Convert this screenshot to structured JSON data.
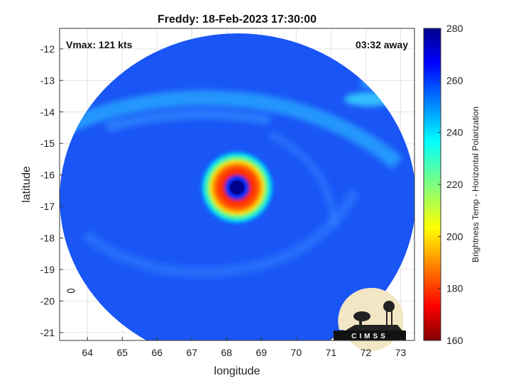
{
  "chart_data": {
    "type": "heatmap",
    "title": "Freddy: 18-Feb-2023 17:30:00",
    "xlabel": "longitude",
    "ylabel": "latitude",
    "xlim": [
      63.2,
      73.4
    ],
    "ylim": [
      -21.25,
      -11.35
    ],
    "xticks": [
      64,
      65,
      66,
      67,
      68,
      69,
      70,
      71,
      72,
      73
    ],
    "xtick_labels": [
      "64",
      "65",
      "66",
      "67",
      "68",
      "69",
      "70",
      "71",
      "72",
      "73"
    ],
    "yticks": [
      -12,
      -13,
      -14,
      -15,
      -16,
      -17,
      -18,
      -19,
      -20,
      -21
    ],
    "ytick_labels": [
      "-12",
      "-13",
      "-14",
      "-15",
      "-16",
      "-17",
      "-18",
      "-19",
      "-20",
      "-21"
    ],
    "grid": true,
    "colorbar": {
      "label": "Brightness Temp - Horizontal Polarization",
      "range": [
        160,
        280
      ],
      "ticks": [
        160,
        180,
        200,
        220,
        240,
        260,
        280
      ],
      "tick_labels": [
        "160",
        "180",
        "200",
        "220",
        "240",
        "260",
        "280"
      ],
      "colormap": "jet"
    },
    "annotations": {
      "vmax": "Vmax: 121 kts",
      "time_offset": "03:32 away"
    },
    "storm_center": {
      "lon": 68.3,
      "lat": -16.4
    },
    "features": {
      "eye_min_temp": 175,
      "eyewall_temp": 190,
      "background_temp": 262,
      "rainband_temp": 248
    }
  },
  "logo": {
    "text": "CIMSS"
  }
}
